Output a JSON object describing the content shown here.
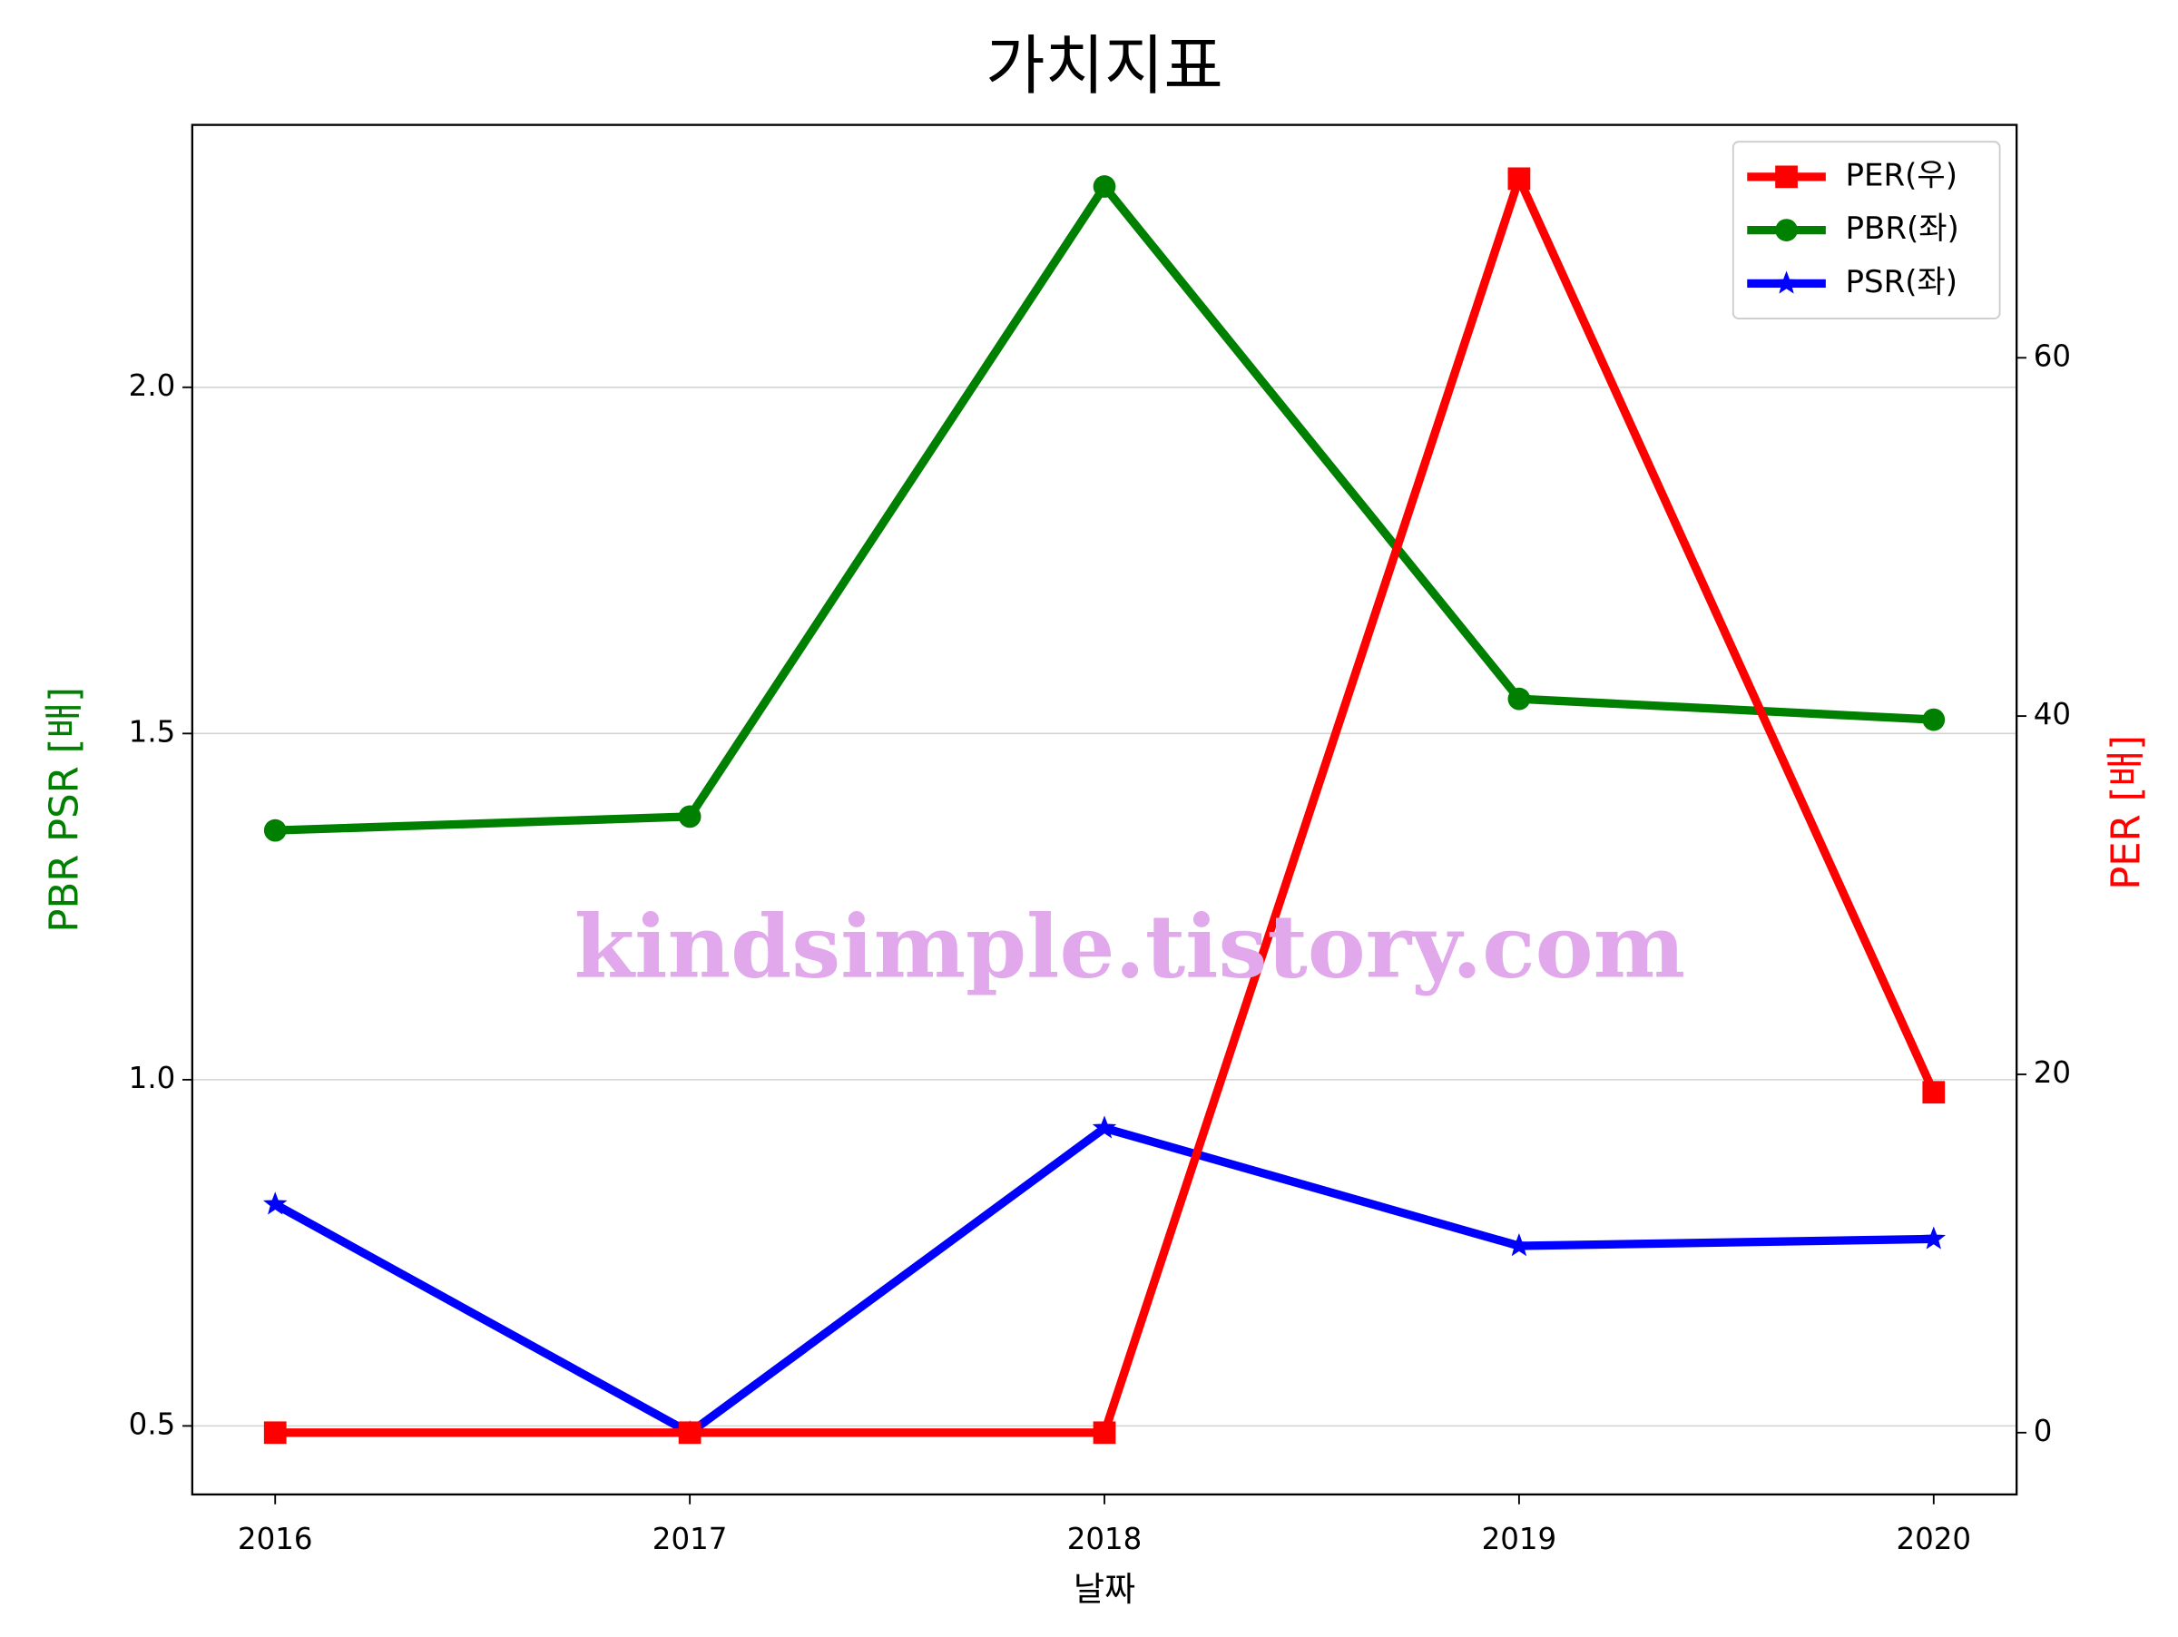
{
  "chart_data": {
    "type": "line",
    "title": "가치지표",
    "x_label": "날짜",
    "y_label": "PBR PSR [배]",
    "y_label_color": "#008000",
    "y2_label": "PER [배]",
    "y2_label_color": "#ff0000",
    "x": [
      2016,
      2017,
      2018,
      2019,
      2020
    ],
    "xlim": [
      2015.8,
      2020.2
    ],
    "xticks": [
      2016,
      2017,
      2018,
      2019,
      2020
    ],
    "ylim": [
      0.401,
      2.379
    ],
    "yticks": [
      0.5,
      {
        "value": 1,
        "label": "1.0"
      },
      1.5,
      {
        "value": 2,
        "label": "2.0"
      }
    ],
    "y2lim": [
      -3.45,
      73.0
    ],
    "y2ticks": [
      0,
      20,
      40,
      60
    ],
    "grid": true,
    "legend": "upper right",
    "annotation": "kindsimple.tistory.com",
    "annotation_color": "#e2a8ec",
    "series": [
      {
        "name": "PER(우)",
        "color": "#ff0000",
        "marker": "square",
        "axis": "y2",
        "values": [
          0,
          0,
          0,
          70,
          19
        ]
      },
      {
        "name": "PBR(좌)",
        "color": "#008000",
        "marker": "circle",
        "values": [
          1.36,
          1.38,
          2.29,
          1.55,
          1.52
        ]
      },
      {
        "name": "PSR(좌)",
        "color": "#0000ff",
        "marker": "star",
        "values": [
          0.82,
          0.49,
          0.93,
          0.76,
          0.77
        ]
      }
    ]
  }
}
